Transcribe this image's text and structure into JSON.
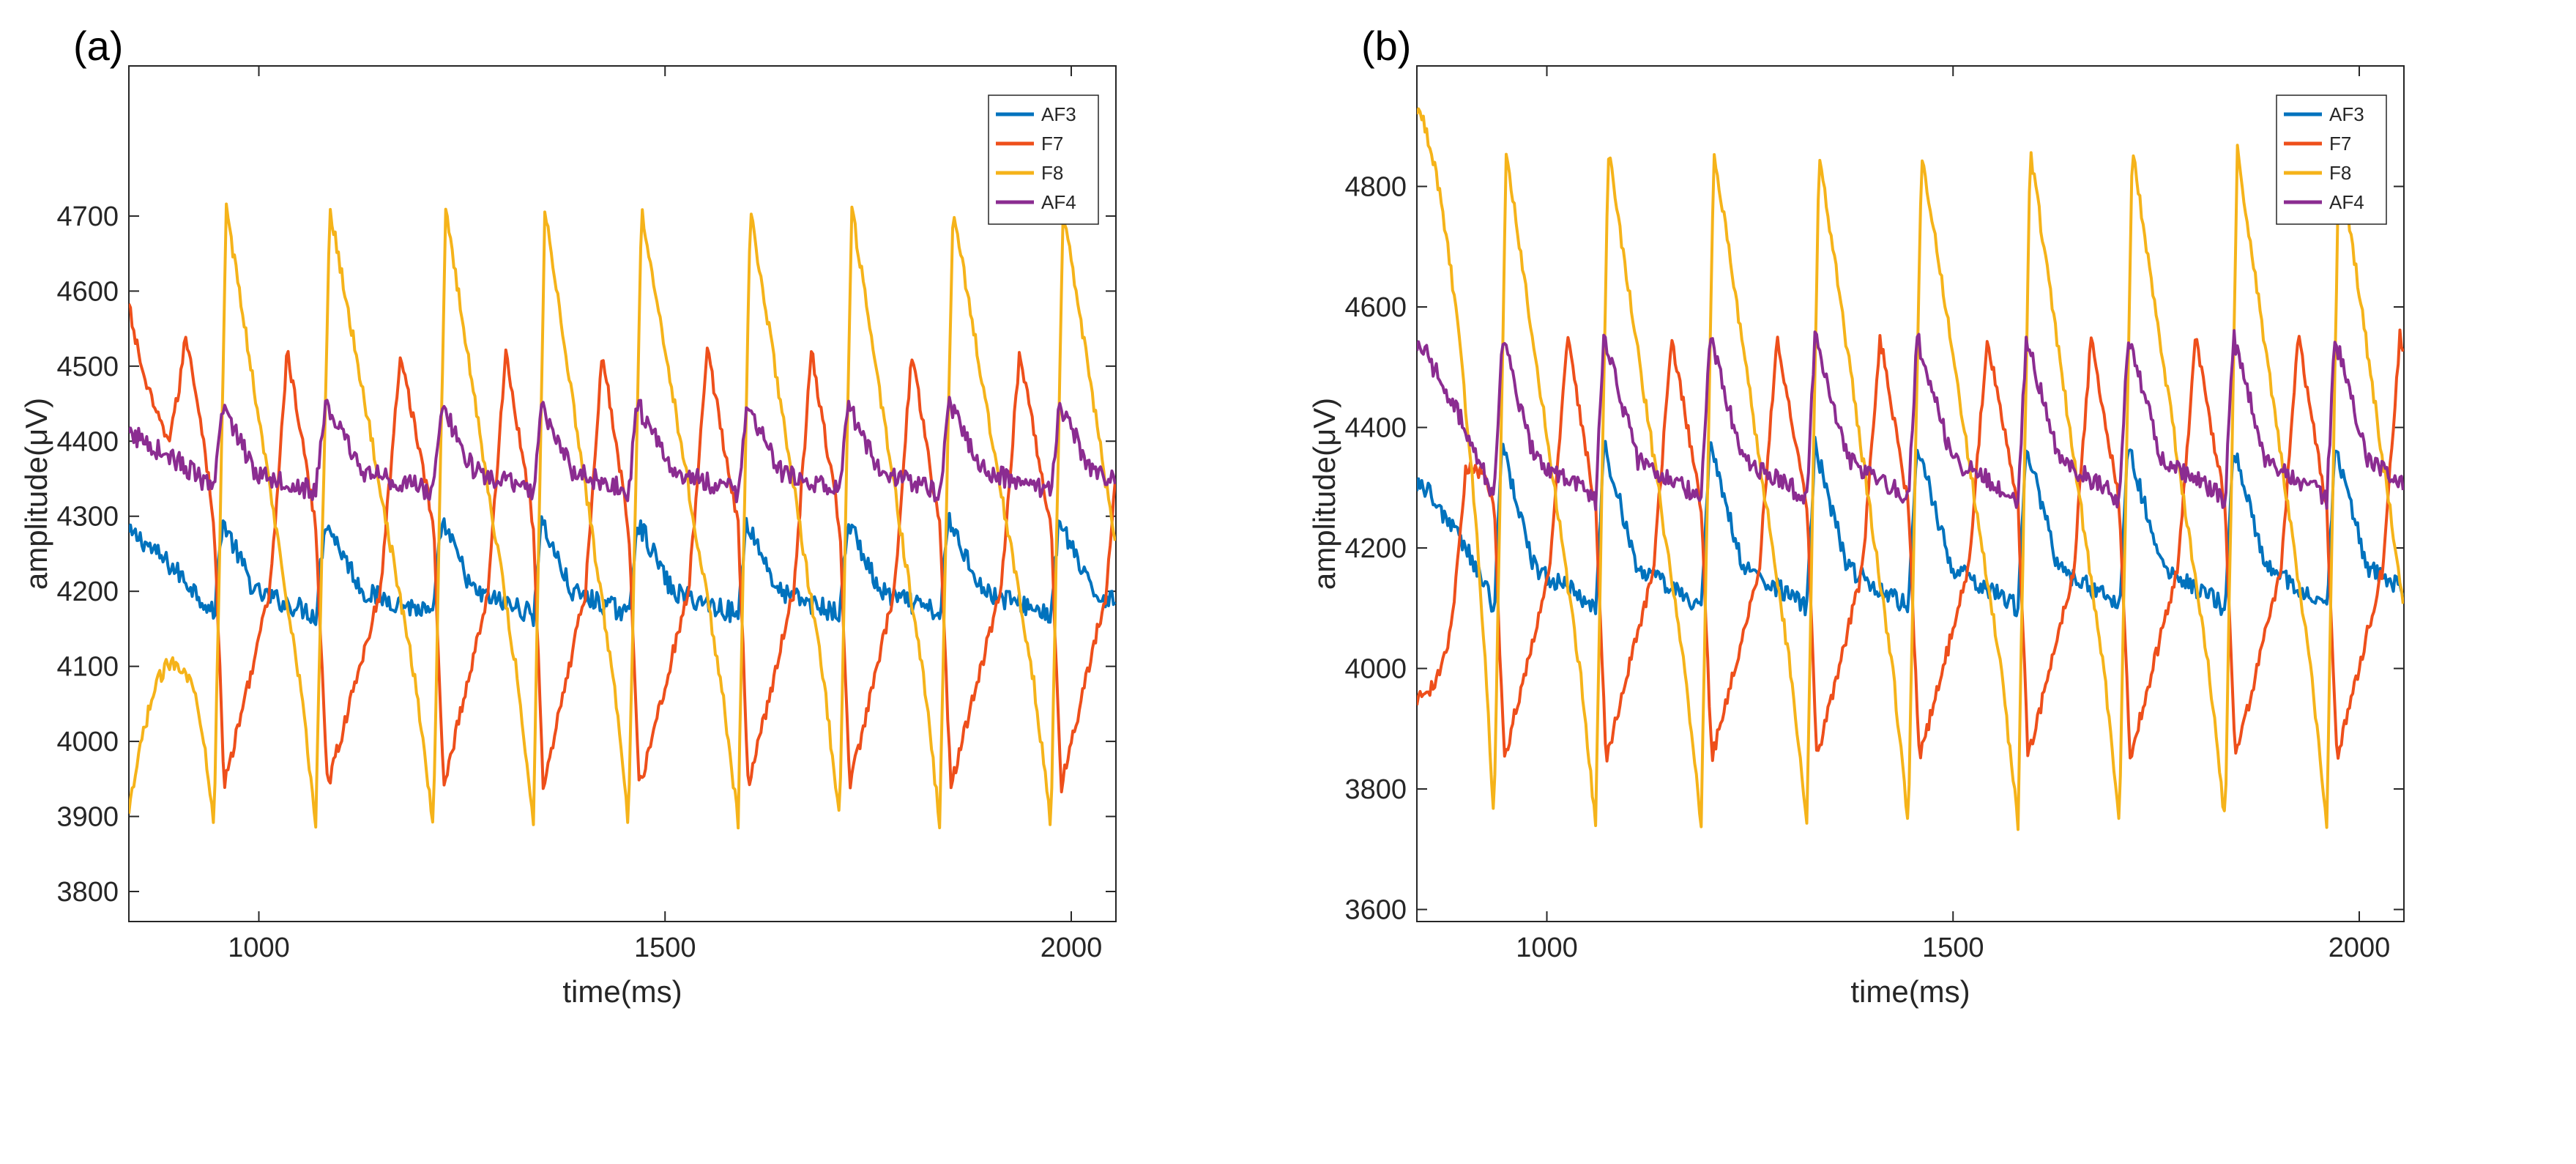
{
  "chart_data": [
    {
      "panel_label": "(a)",
      "type": "line",
      "xlabel": "time(ms)",
      "ylabel": "amplitude(μV)",
      "xlim": [
        840,
        2055
      ],
      "ylim": [
        3760,
        4900
      ],
      "xticks": [
        1000,
        1500,
        2000
      ],
      "yticks": [
        3800,
        3900,
        4000,
        4100,
        4200,
        4300,
        4400,
        4500,
        4600,
        4700
      ],
      "legend_position": "top-right",
      "period": 120,
      "beats": [
        945,
        1070,
        1215,
        1338,
        1455,
        1590,
        1715,
        1838,
        1975
      ],
      "series": [
        {
          "name": "AF3",
          "color": "#0072BD",
          "baseline": 4215,
          "amp": 80,
          "start": 4275,
          "noise": 14
        },
        {
          "name": "F7",
          "color": "#EE4F1B",
          "baseline": 4230,
          "amp": 290,
          "start": 4580,
          "noise": 10
        },
        {
          "name": "F8",
          "color": "#F5B31A",
          "baseline": 4300,
          "amp": 410,
          "start": 3900,
          "noise": 10
        },
        {
          "name": "AF4",
          "color": "#8B2C91",
          "baseline": 4375,
          "amp": 75,
          "start": 4405,
          "noise": 14
        }
      ]
    },
    {
      "panel_label": "(b)",
      "type": "line",
      "xlabel": "time(ms)",
      "ylabel": "amplitude(μV)",
      "xlim": [
        840,
        2055
      ],
      "ylim": [
        3580,
        5000
      ],
      "xticks": [
        1000,
        1500,
        2000
      ],
      "yticks": [
        3600,
        3800,
        4000,
        4200,
        4400,
        4600,
        4800
      ],
      "legend_position": "top-right",
      "beats": [
        935,
        1060,
        1190,
        1320,
        1445,
        1580,
        1705,
        1835,
        1960
      ],
      "series": [
        {
          "name": "AF3",
          "color": "#0072BD",
          "baseline": 4200,
          "amp": 170,
          "start": 4310,
          "noise": 16
        },
        {
          "name": "F7",
          "color": "#EE4F1B",
          "baseline": 4200,
          "amp": 350,
          "start": 3950,
          "noise": 12
        },
        {
          "name": "F8",
          "color": "#F5B31A",
          "baseline": 4300,
          "amp": 560,
          "start": 4930,
          "noise": 12
        },
        {
          "name": "AF4",
          "color": "#8B2C91",
          "baseline": 4380,
          "amp": 170,
          "start": 4540,
          "noise": 16
        }
      ]
    }
  ]
}
